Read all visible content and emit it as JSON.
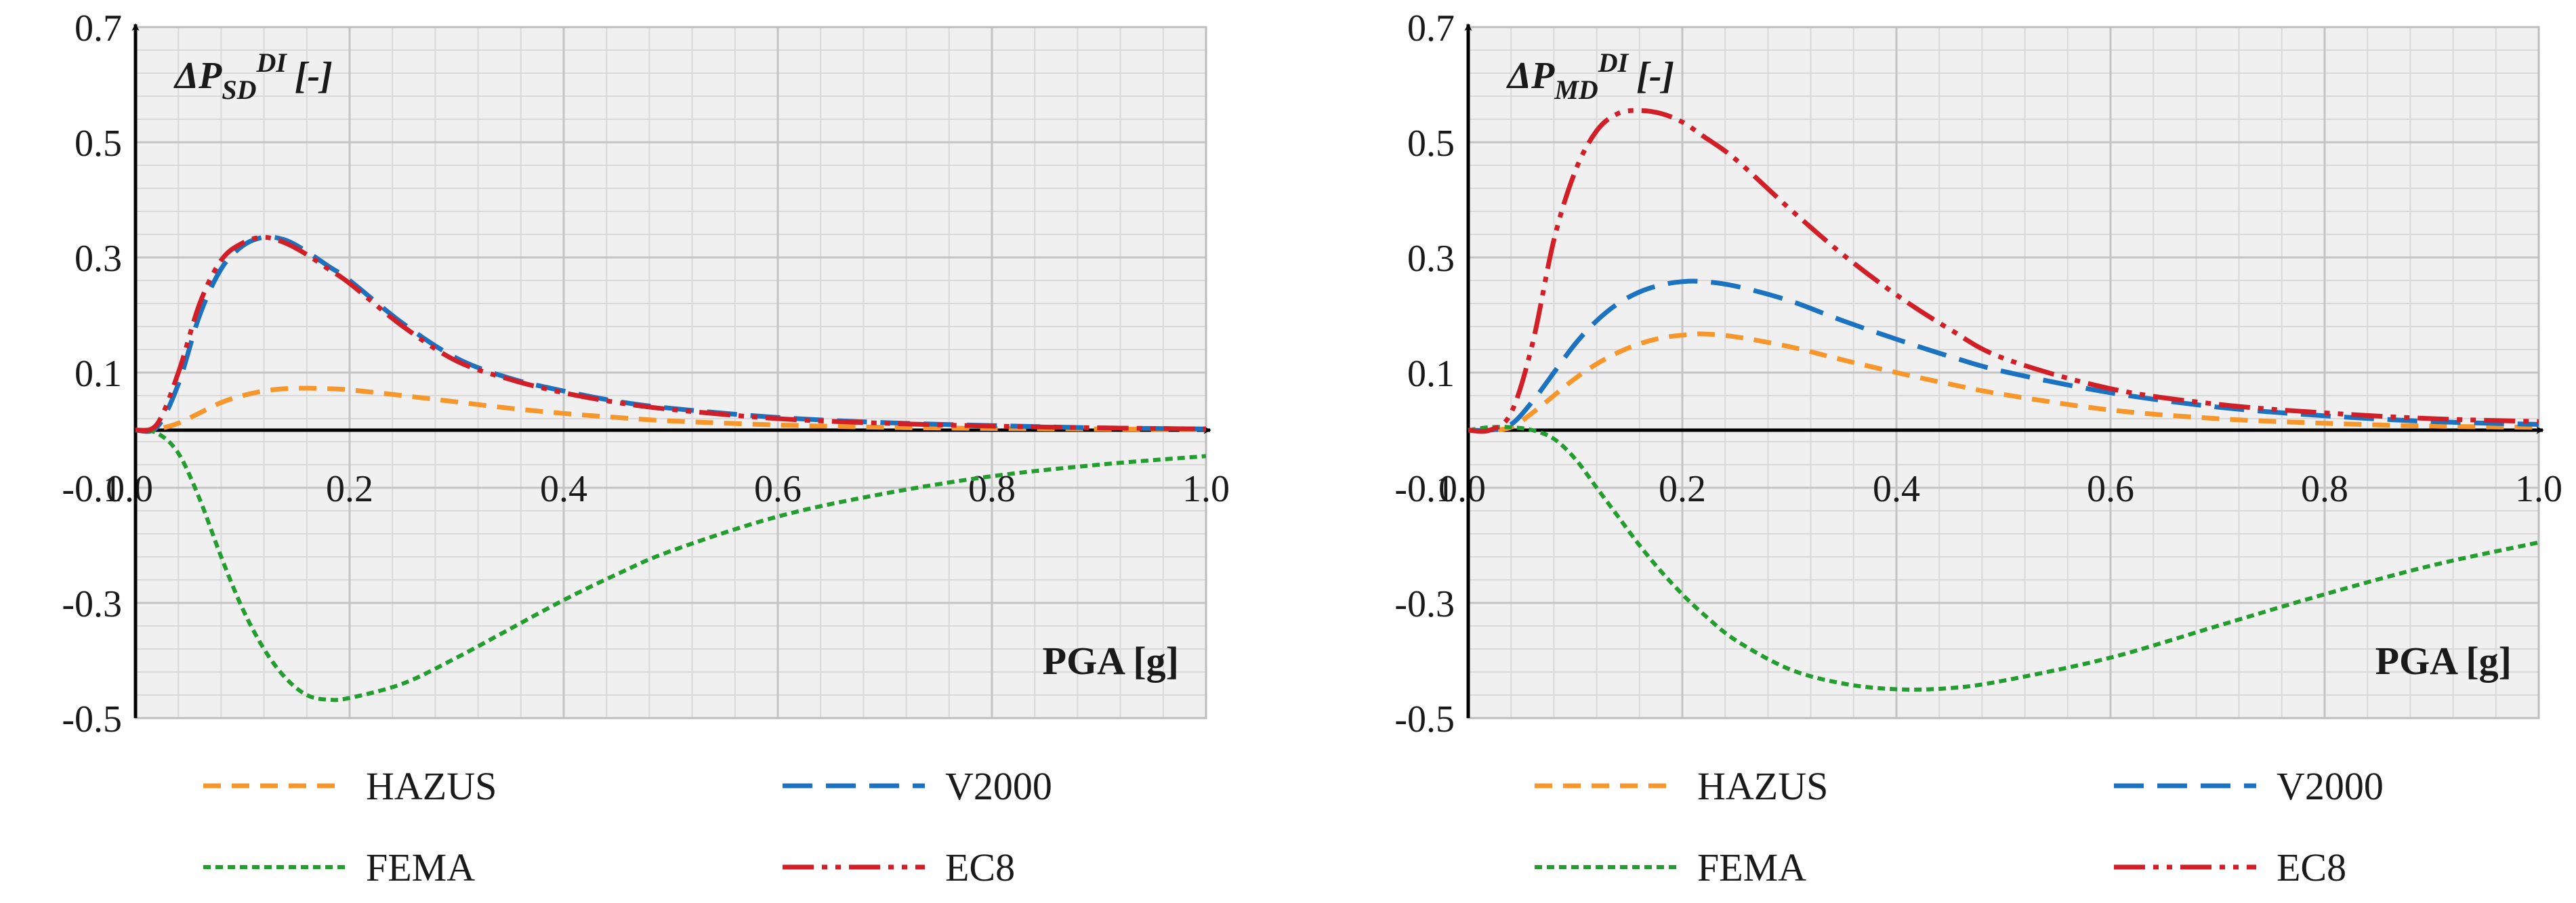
{
  "colors": {
    "HAZUS": "#f7962a",
    "V2000": "#1a72c0",
    "FEMA": "#239d2e",
    "EC8": "#d21f27",
    "grid": "#c4c4c4",
    "plot_bg": "#f0f0f0",
    "axis": "#000000"
  },
  "legend_labels": [
    "HAZUS",
    "V2000",
    "FEMA",
    "EC8"
  ],
  "chart_data": [
    {
      "type": "line",
      "panel": "left",
      "ylabel": {
        "main": "ΔP",
        "sub": "SD",
        "sup": "DI",
        "unit": "[-]"
      },
      "xlabel": "PGA [g]",
      "xlim": [
        0,
        1.0
      ],
      "ylim": [
        -0.5,
        0.7
      ],
      "xticks": [
        0,
        0.2,
        0.4,
        0.6,
        0.8,
        1.0
      ],
      "xtick_labels": [
        "0.0",
        "0.2",
        "0.4",
        "0.6",
        "0.8",
        "1.0"
      ],
      "yticks": [
        -0.5,
        -0.3,
        -0.1,
        0.1,
        0.3,
        0.5,
        0.7
      ],
      "ytick_labels": [
        "-0.5",
        "-0.3",
        "-0.1",
        "0.1",
        "0.3",
        "0.5",
        "0.7"
      ],
      "grid": true,
      "x": [
        0,
        0.02,
        0.04,
        0.06,
        0.08,
        0.1,
        0.12,
        0.14,
        0.16,
        0.18,
        0.2,
        0.25,
        0.3,
        0.35,
        0.4,
        0.45,
        0.5,
        0.6,
        0.7,
        0.8,
        0.9,
        1.0
      ],
      "series": [
        {
          "name": "HAZUS",
          "values": [
            0,
            0.002,
            0.012,
            0.03,
            0.048,
            0.06,
            0.068,
            0.072,
            0.073,
            0.072,
            0.07,
            0.06,
            0.049,
            0.038,
            0.029,
            0.022,
            0.016,
            0.009,
            0.005,
            0.003,
            0.002,
            0.001
          ]
        },
        {
          "name": "V2000",
          "values": [
            0,
            0.005,
            0.08,
            0.2,
            0.28,
            0.32,
            0.335,
            0.33,
            0.31,
            0.285,
            0.26,
            0.185,
            0.125,
            0.09,
            0.068,
            0.05,
            0.038,
            0.022,
            0.013,
            0.008,
            0.004,
            0.002
          ]
        },
        {
          "name": "FEMA",
          "values": [
            0,
            -0.005,
            -0.04,
            -0.12,
            -0.22,
            -0.31,
            -0.38,
            -0.43,
            -0.46,
            -0.468,
            -0.465,
            -0.44,
            -0.395,
            -0.345,
            -0.295,
            -0.25,
            -0.21,
            -0.15,
            -0.11,
            -0.08,
            -0.06,
            -0.045
          ]
        },
        {
          "name": "EC8",
          "values": [
            0,
            0.01,
            0.1,
            0.22,
            0.295,
            0.325,
            0.335,
            0.325,
            0.305,
            0.28,
            0.255,
            0.18,
            0.12,
            0.088,
            0.065,
            0.048,
            0.036,
            0.02,
            0.012,
            0.007,
            0.004,
            0.002
          ]
        }
      ]
    },
    {
      "type": "line",
      "panel": "right",
      "ylabel": {
        "main": "ΔP",
        "sub": "MD",
        "sup": "DI",
        "unit": "[-]"
      },
      "xlabel": "PGA [g]",
      "xlim": [
        0,
        1.0
      ],
      "ylim": [
        -0.5,
        0.7
      ],
      "xticks": [
        0,
        0.2,
        0.4,
        0.6,
        0.8,
        1.0
      ],
      "xtick_labels": [
        "0.0",
        "0.2",
        "0.4",
        "0.6",
        "0.8",
        "1.0"
      ],
      "yticks": [
        -0.5,
        -0.3,
        -0.1,
        0.1,
        0.3,
        0.5,
        0.7
      ],
      "ytick_labels": [
        "-0.5",
        "-0.3",
        "-0.1",
        "0.1",
        "0.3",
        "0.5",
        "0.7"
      ],
      "grid": true,
      "x": [
        0,
        0.02,
        0.04,
        0.06,
        0.08,
        0.1,
        0.12,
        0.14,
        0.16,
        0.18,
        0.2,
        0.22,
        0.25,
        0.3,
        0.35,
        0.4,
        0.45,
        0.5,
        0.6,
        0.7,
        0.8,
        0.9,
        1.0
      ],
      "series": [
        {
          "name": "HAZUS",
          "values": [
            0,
            0,
            0.005,
            0.03,
            0.06,
            0.09,
            0.115,
            0.135,
            0.15,
            0.16,
            0.165,
            0.167,
            0.162,
            0.145,
            0.122,
            0.1,
            0.08,
            0.062,
            0.035,
            0.02,
            0.012,
            0.007,
            0.005
          ]
        },
        {
          "name": "V2000",
          "values": [
            0,
            0,
            0.01,
            0.05,
            0.1,
            0.15,
            0.19,
            0.22,
            0.24,
            0.252,
            0.258,
            0.258,
            0.25,
            0.225,
            0.19,
            0.158,
            0.128,
            0.102,
            0.065,
            0.04,
            0.025,
            0.015,
            0.01
          ]
        },
        {
          "name": "FEMA",
          "values": [
            0,
            0.005,
            0.005,
            0,
            -0.015,
            -0.05,
            -0.1,
            -0.15,
            -0.2,
            -0.245,
            -0.285,
            -0.32,
            -0.365,
            -0.415,
            -0.44,
            -0.45,
            -0.448,
            -0.435,
            -0.395,
            -0.34,
            -0.285,
            -0.235,
            -0.195
          ]
        },
        {
          "name": "EC8",
          "values": [
            0,
            0,
            0.03,
            0.15,
            0.33,
            0.45,
            0.52,
            0.55,
            0.555,
            0.55,
            0.535,
            0.51,
            0.47,
            0.385,
            0.305,
            0.235,
            0.175,
            0.125,
            0.072,
            0.045,
            0.03,
            0.02,
            0.015
          ]
        }
      ]
    }
  ]
}
